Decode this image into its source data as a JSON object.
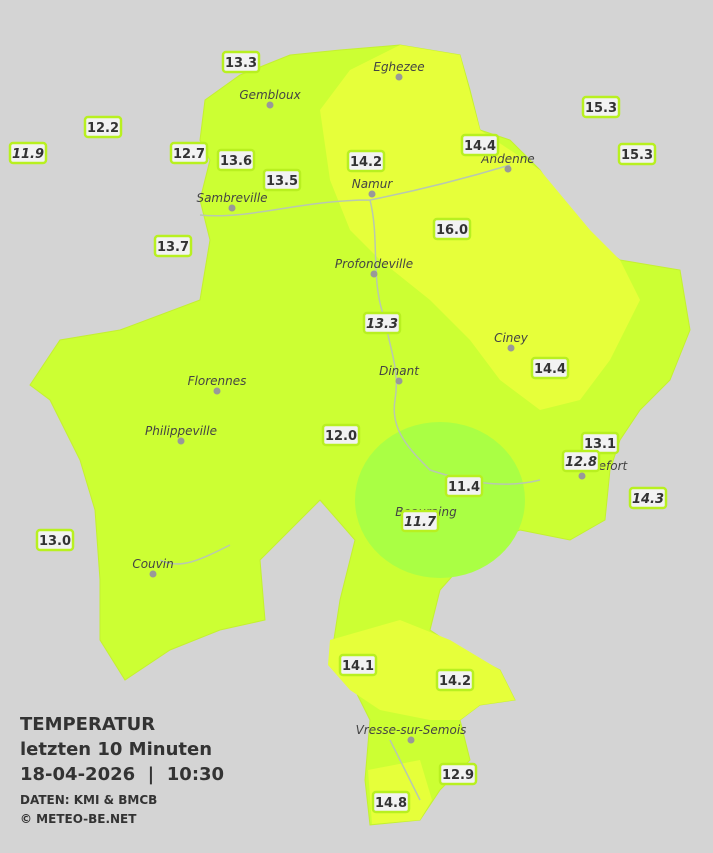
{
  "title": {
    "line1": "TEMPERATUR",
    "line2": "letzten 10 Minuten",
    "line3": "18-04-2026  |  10:30",
    "source": "DATEN: KMI & BMCB",
    "copyright": "© METEO-BE.NET"
  },
  "cities": [
    "Eghezee",
    "Gembloux",
    "Andenne",
    "Namur",
    "Sambreville",
    "Profondeville",
    "Ciney",
    "Dinant",
    "Florennes",
    "Philippeville",
    "Rochefort",
    "Beauraing",
    "Couvin",
    "Vresse-sur-Semois"
  ],
  "stations": [
    "13.3",
    "12.2",
    "11.9",
    "12.7",
    "13.6",
    "13.5",
    "14.2",
    "14.4",
    "15.3",
    "15.3",
    "16.0",
    "13.7",
    "13.3",
    "14.4",
    "12.0",
    "13.1",
    "12.8",
    "11.4",
    "14.3",
    "11.7",
    "13.0",
    "14.1",
    "14.2",
    "12.9",
    "14.8"
  ]
}
